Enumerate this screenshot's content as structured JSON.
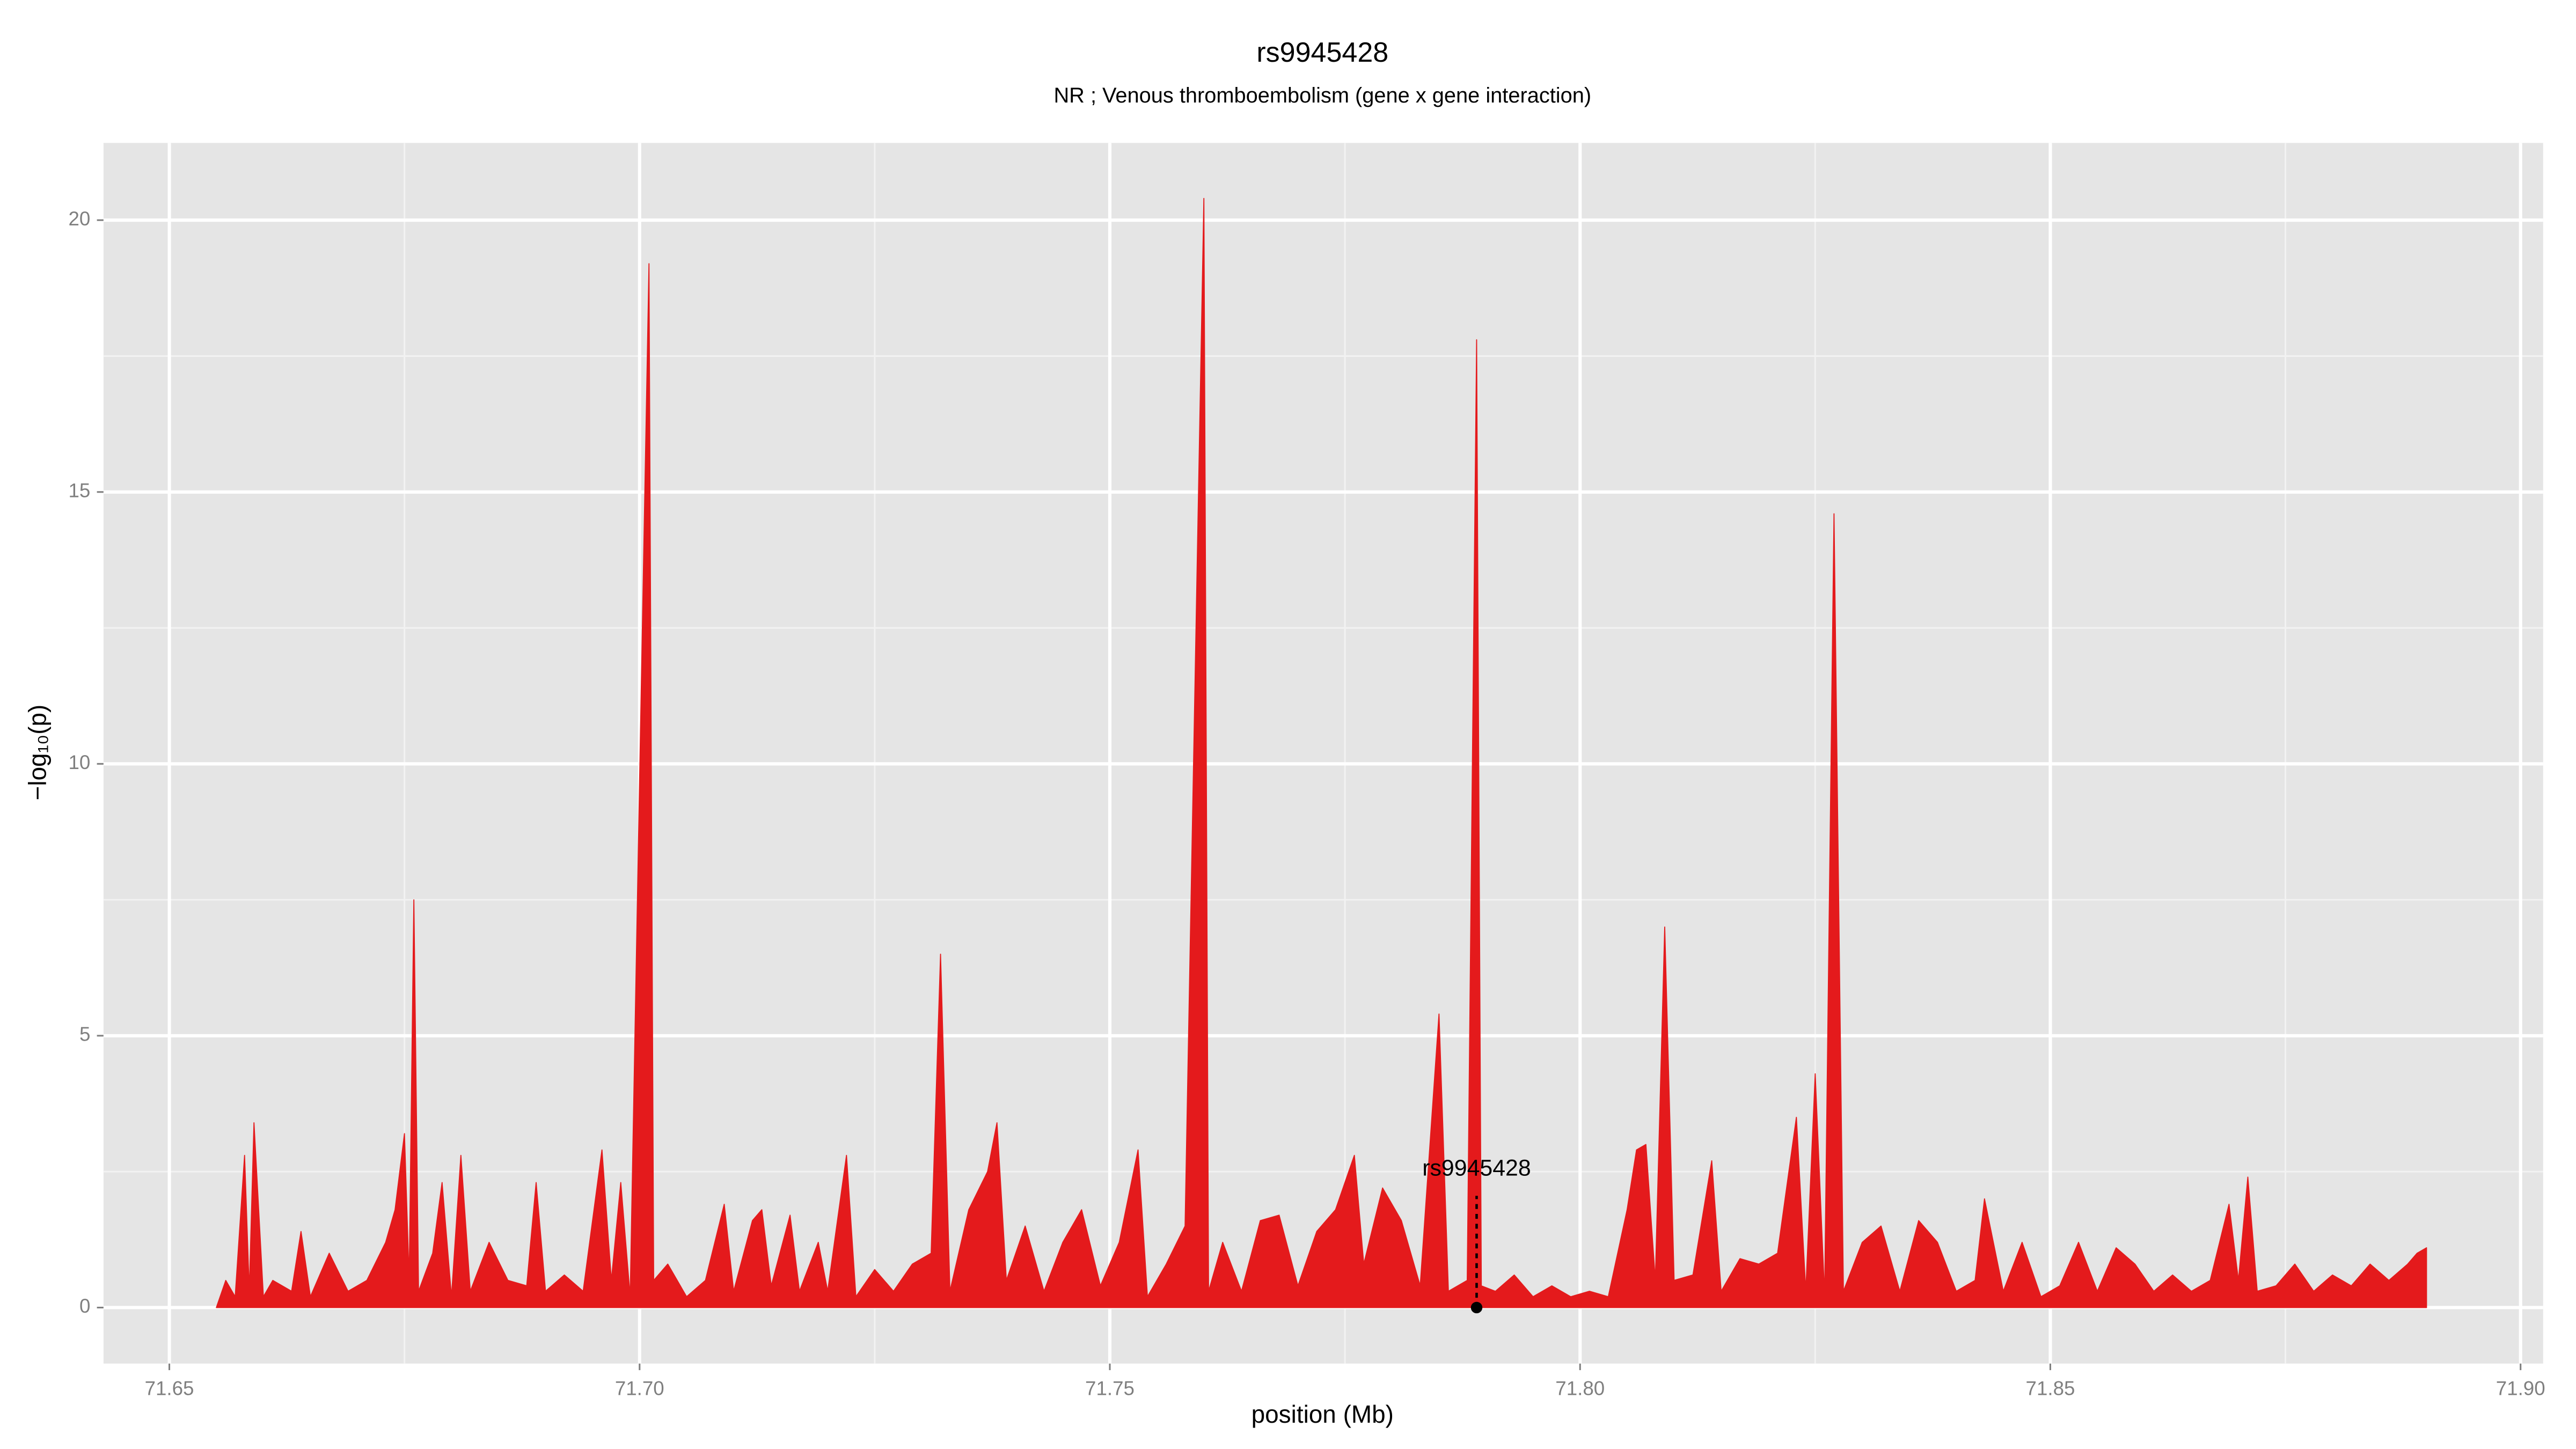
{
  "chart_data": {
    "type": "area",
    "title": "rs9945428",
    "subtitle": "NR ; Venous thromboembolism (gene x gene interaction)",
    "xlabel": "position (Mb)",
    "ylabel": "−log₁₀(p)",
    "color": "#e41a1c",
    "grid": true,
    "xlim": [
      71.643,
      71.9024
    ],
    "ylim": [
      -1.03,
      21.42
    ],
    "xticks": [
      71.65,
      {
        "value": 71.7,
        "label": "71.70"
      },
      71.75,
      {
        "value": 71.8,
        "label": "71.80"
      },
      71.85,
      {
        "value": 71.9,
        "label": "71.90"
      }
    ],
    "yticks": [
      0,
      5,
      10,
      15,
      20
    ],
    "x": [
      71.655,
      71.656,
      71.657,
      71.658,
      71.6585,
      71.659,
      71.66,
      71.661,
      71.663,
      71.664,
      71.665,
      71.667,
      71.669,
      71.671,
      71.673,
      71.674,
      71.675,
      71.6755,
      71.676,
      71.6765,
      71.678,
      71.679,
      71.68,
      71.681,
      71.682,
      71.684,
      71.686,
      71.688,
      71.689,
      71.69,
      71.692,
      71.694,
      71.696,
      71.697,
      71.698,
      71.699,
      71.701,
      71.7015,
      71.703,
      71.705,
      71.707,
      71.709,
      71.71,
      71.712,
      71.713,
      71.714,
      71.716,
      71.717,
      71.719,
      71.72,
      71.722,
      71.723,
      71.725,
      71.727,
      71.729,
      71.731,
      71.732,
      71.733,
      71.735,
      71.737,
      71.738,
      71.739,
      71.741,
      71.743,
      71.745,
      71.747,
      71.749,
      71.751,
      71.753,
      71.754,
      71.756,
      71.758,
      71.76,
      71.7605,
      71.762,
      71.764,
      71.766,
      71.768,
      71.77,
      71.772,
      71.774,
      71.776,
      71.777,
      71.779,
      71.781,
      71.783,
      71.785,
      71.786,
      71.788,
      71.789,
      71.7895,
      71.791,
      71.793,
      71.795,
      71.797,
      71.799,
      71.801,
      71.803,
      71.805,
      71.806,
      71.807,
      71.808,
      71.809,
      71.81,
      71.812,
      71.814,
      71.815,
      71.817,
      71.819,
      71.821,
      71.823,
      71.824,
      71.825,
      71.826,
      71.827,
      71.828,
      71.83,
      71.832,
      71.834,
      71.836,
      71.838,
      71.84,
      71.842,
      71.843,
      71.845,
      71.847,
      71.849,
      71.851,
      71.853,
      71.855,
      71.857,
      71.859,
      71.861,
      71.863,
      71.865,
      71.867,
      71.869,
      71.87,
      71.871,
      71.872,
      71.874,
      71.876,
      71.878,
      71.88,
      71.882,
      71.884,
      71.886,
      71.888,
      71.889,
      71.89
    ],
    "values": [
      0,
      0.5,
      0.2,
      2.8,
      0.3,
      3.4,
      0.2,
      0.5,
      0.3,
      1.4,
      0.2,
      1.0,
      0.3,
      0.5,
      1.2,
      1.8,
      3.2,
      0.5,
      7.5,
      0.3,
      1.0,
      2.3,
      0.2,
      2.8,
      0.3,
      1.2,
      0.5,
      0.4,
      2.3,
      0.3,
      0.6,
      0.3,
      2.9,
      0.5,
      2.3,
      0.2,
      19.2,
      0.5,
      0.8,
      0.2,
      0.5,
      1.9,
      0.3,
      1.6,
      1.8,
      0.4,
      1.7,
      0.3,
      1.2,
      0.3,
      2.8,
      0.2,
      0.7,
      0.3,
      0.8,
      1.0,
      6.5,
      0.3,
      1.8,
      2.5,
      3.4,
      0.5,
      1.5,
      0.3,
      1.2,
      1.8,
      0.4,
      1.2,
      2.9,
      0.2,
      0.8,
      1.5,
      20.4,
      0.3,
      1.2,
      0.3,
      1.6,
      1.7,
      0.4,
      1.4,
      1.8,
      2.8,
      0.8,
      2.2,
      1.6,
      0.4,
      5.4,
      0.3,
      0.5,
      17.8,
      0.4,
      0.3,
      0.6,
      0.2,
      0.4,
      0.2,
      0.3,
      0.2,
      1.8,
      2.9,
      3.0,
      0.5,
      7.0,
      0.5,
      0.6,
      2.7,
      0.3,
      0.9,
      0.8,
      1.0,
      3.5,
      0.3,
      4.3,
      0.2,
      14.6,
      0.3,
      1.2,
      1.5,
      0.3,
      1.6,
      1.2,
      0.3,
      0.5,
      2.0,
      0.3,
      1.2,
      0.2,
      0.4,
      1.2,
      0.3,
      1.1,
      0.8,
      0.3,
      0.6,
      0.3,
      0.5,
      1.9,
      0.5,
      2.4,
      0.3,
      0.4,
      0.8,
      0.3,
      0.6,
      0.4,
      0.8,
      0.5,
      0.8,
      1.0,
      1.1
    ],
    "highlight": {
      "label": "rs9945428",
      "x": 71.789,
      "y": 0
    }
  }
}
